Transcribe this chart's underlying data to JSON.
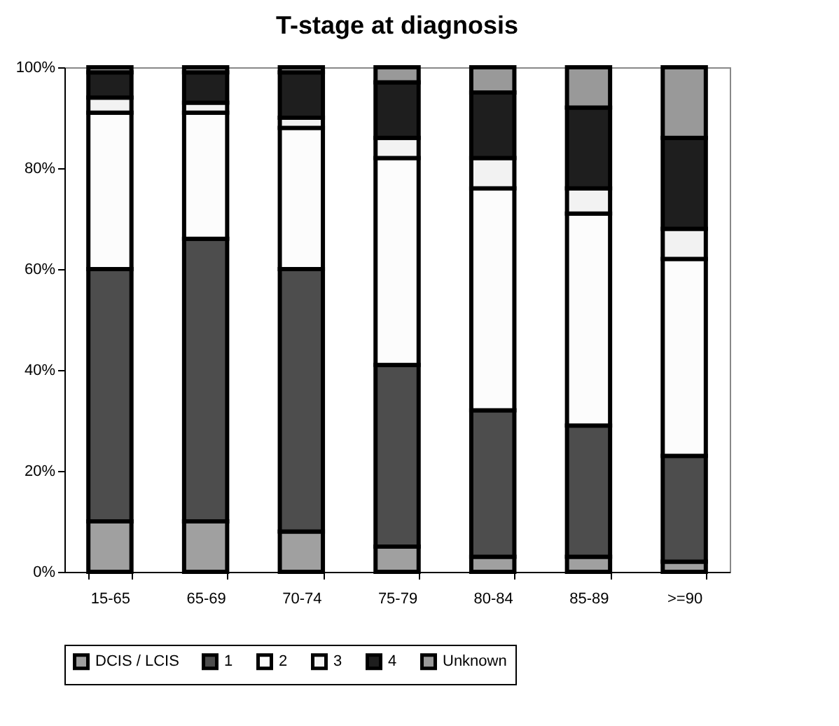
{
  "chart_data": {
    "type": "bar",
    "title": "T-stage at diagnosis",
    "stacked": true,
    "legend": "bottom",
    "grid": false,
    "categories": [
      "15-65",
      "65-69",
      "70-74",
      "75-79",
      "80-84",
      "85-89",
      ">=90"
    ],
    "ylim": [
      0,
      100
    ],
    "yticks": [
      {
        "value": 0,
        "label": "0%"
      },
      {
        "value": 20,
        "label": "20%"
      },
      {
        "value": 40,
        "label": "40%"
      },
      {
        "value": 60,
        "label": "60%"
      },
      {
        "value": 80,
        "label": "80%"
      },
      {
        "value": 100,
        "label": "100%"
      }
    ],
    "series": [
      {
        "name": "DCIS / LCIS",
        "color": "#a0a0a0",
        "values": [
          10,
          10,
          8,
          5,
          3,
          3,
          2
        ]
      },
      {
        "name": "1",
        "color": "#4d4d4d",
        "values": [
          50,
          56,
          52,
          36,
          29,
          26,
          21
        ]
      },
      {
        "name": "2",
        "color": "#fcfcfc",
        "values": [
          31,
          25,
          28,
          41,
          44,
          42,
          39
        ]
      },
      {
        "name": "3",
        "color": "#f2f2f2",
        "values": [
          3,
          2,
          2,
          4,
          6,
          5,
          6
        ]
      },
      {
        "name": "4",
        "color": "#1e1e1e",
        "values": [
          5,
          6,
          9,
          11,
          13,
          16,
          18
        ]
      },
      {
        "name": "Unknown",
        "color": "#999999",
        "values": [
          1,
          1,
          1,
          3,
          5,
          8,
          14
        ]
      }
    ]
  }
}
